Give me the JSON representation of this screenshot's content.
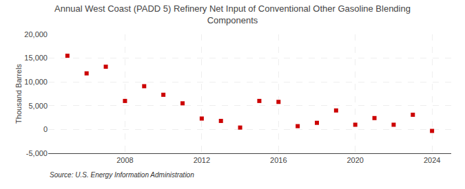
{
  "chart_data": {
    "type": "scatter",
    "title": "Annual West Coast (PADD 5) Refinery Net Input of Conventional Other Gasoline Blending\nComponents",
    "y_label": "Thousand Barrels",
    "annotations": [
      "Source: U.S. Energy Information Administration"
    ],
    "x": [
      2005,
      2006,
      2007,
      2008,
      2009,
      2010,
      2011,
      2012,
      2013,
      2014,
      2015,
      2016,
      2017,
      2018,
      2019,
      2020,
      2021,
      2022,
      2023,
      2024
    ],
    "values": [
      15500,
      11800,
      13200,
      6000,
      9100,
      7300,
      5500,
      2300,
      1800,
      400,
      6000,
      5800,
      700,
      1400,
      4000,
      1000,
      2400,
      1000,
      3100,
      -300
    ],
    "color": "#cc0000",
    "marker": "square",
    "xlim": [
      2004,
      2025
    ],
    "xticks": [
      2008,
      2012,
      2016,
      2020,
      2024
    ],
    "ylim": [
      -5000,
      20000
    ],
    "yticks": [
      {
        "value": -5000,
        "label": "-5,000"
      },
      0,
      {
        "value": 5000,
        "label": "5,000"
      },
      {
        "value": 10000,
        "label": "10,000"
      },
      {
        "value": 15000,
        "label": "15,000"
      },
      {
        "value": 20000,
        "label": "20,000"
      }
    ],
    "grid": true
  }
}
